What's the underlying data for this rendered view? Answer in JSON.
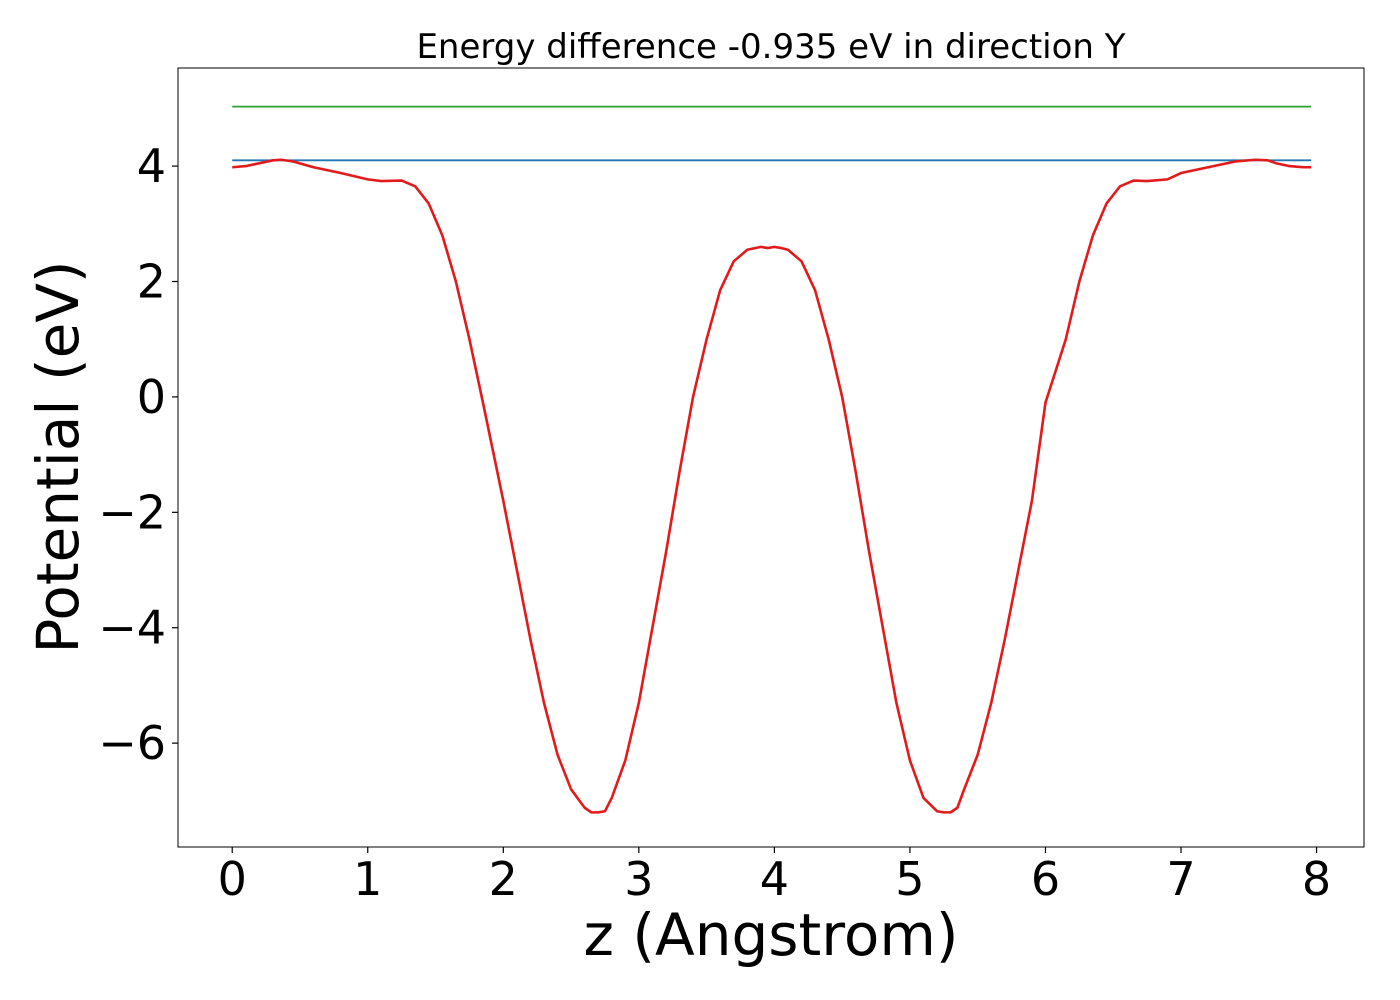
{
  "chart_data": {
    "type": "line",
    "title": "Energy difference -0.935 eV in direction Y",
    "xlabel": "z (Angstrom)",
    "ylabel": "Potential (eV)",
    "xlim": [
      -0.4,
      8.35
    ],
    "ylim": [
      -7.8,
      5.7
    ],
    "xticks": [
      0,
      1,
      2,
      3,
      4,
      5,
      6,
      7,
      8
    ],
    "xtick_labels": [
      "0",
      "1",
      "2",
      "3",
      "4",
      "5",
      "6",
      "7",
      "8"
    ],
    "yticks": [
      4,
      2,
      0,
      -2,
      -4,
      -6
    ],
    "ytick_labels": [
      "4",
      "2",
      "0",
      "−2",
      "−4",
      "−6"
    ],
    "grid": false,
    "series": [
      {
        "color": "#2ca02c",
        "x": [
          0,
          7.96
        ],
        "y": [
          5.03,
          5.03
        ]
      },
      {
        "color": "#1f77b4",
        "x": [
          0,
          7.96
        ],
        "y": [
          4.1,
          4.1
        ]
      },
      {
        "color": "#e31a1c",
        "x": [
          0,
          0.1,
          0.2,
          0.3,
          0.36,
          0.45,
          0.6,
          0.8,
          1.0,
          1.1,
          1.25,
          1.35,
          1.45,
          1.55,
          1.65,
          1.75,
          1.85,
          2.0,
          2.1,
          2.2,
          2.3,
          2.4,
          2.5,
          2.6,
          2.65,
          2.7,
          2.75,
          2.8,
          2.9,
          3.0,
          3.1,
          3.2,
          3.3,
          3.4,
          3.5,
          3.6,
          3.7,
          3.8,
          3.9,
          3.95,
          4.0,
          4.05,
          4.1,
          4.2,
          4.3,
          4.4,
          4.5,
          4.6,
          4.7,
          4.8,
          4.9,
          5.0,
          5.1,
          5.2,
          5.25,
          5.3,
          5.35,
          5.4,
          5.5,
          5.6,
          5.7,
          5.8,
          5.9,
          6.0,
          6.15,
          6.25,
          6.35,
          6.45,
          6.55,
          6.65,
          6.75,
          6.9,
          7.0,
          7.2,
          7.4,
          7.55,
          7.64,
          7.7,
          7.8,
          7.9,
          7.96
        ],
        "y": [
          3.98,
          4.0,
          4.05,
          4.1,
          4.11,
          4.08,
          3.98,
          3.88,
          3.77,
          3.74,
          3.75,
          3.65,
          3.35,
          2.8,
          2.0,
          1.0,
          -0.1,
          -1.8,
          -3.0,
          -4.2,
          -5.3,
          -6.2,
          -6.8,
          -7.12,
          -7.2,
          -7.2,
          -7.18,
          -6.95,
          -6.3,
          -5.3,
          -4.0,
          -2.7,
          -1.3,
          0.0,
          1.0,
          1.85,
          2.35,
          2.55,
          2.6,
          2.58,
          2.6,
          2.58,
          2.55,
          2.35,
          1.85,
          1.0,
          0.0,
          -1.3,
          -2.7,
          -4.0,
          -5.3,
          -6.3,
          -6.95,
          -7.18,
          -7.2,
          -7.2,
          -7.12,
          -6.8,
          -6.2,
          -5.3,
          -4.2,
          -3.0,
          -1.8,
          -0.1,
          1.0,
          2.0,
          2.8,
          3.35,
          3.65,
          3.75,
          3.74,
          3.77,
          3.88,
          3.98,
          4.08,
          4.11,
          4.1,
          4.05,
          4.0,
          3.98,
          3.98
        ]
      }
    ]
  }
}
